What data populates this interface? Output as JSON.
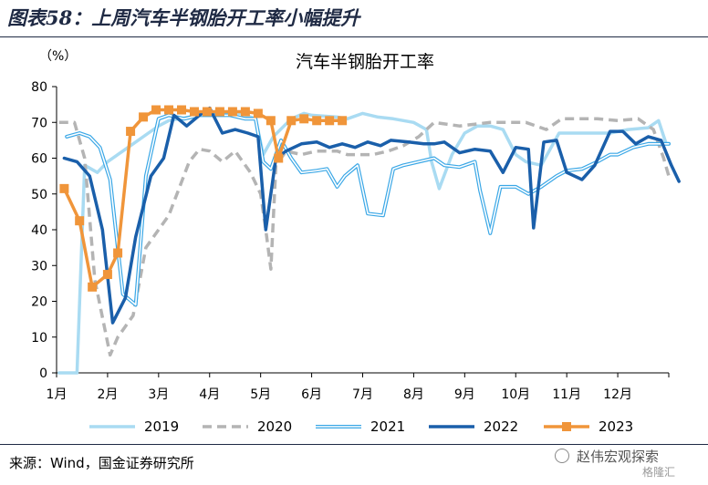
{
  "figure": {
    "title": "图表58：上周汽车半钢胎开工率小幅提升",
    "source": "来源：Wind，国金证券研究所",
    "watermark": "赵伟宏观探索",
    "badge": "格隆汇"
  },
  "chart_data": {
    "type": "line",
    "title": "汽车半钢胎开工率",
    "unit_label": "（%）",
    "xlabel": "",
    "ylabel": "",
    "ylim": [
      0,
      80
    ],
    "yticks": [
      0,
      10,
      20,
      30,
      40,
      50,
      60,
      70,
      80
    ],
    "xlim": [
      1,
      13
    ],
    "xticks": [
      1,
      2,
      3,
      4,
      5,
      6,
      7,
      8,
      9,
      10,
      11,
      12
    ],
    "xtick_labels": [
      "1月",
      "2月",
      "3月",
      "4月",
      "5月",
      "6月",
      "7月",
      "8月",
      "9月",
      "10月",
      "11月",
      "12月"
    ],
    "grid": false,
    "legend_position": "bottom",
    "series": [
      {
        "name": "2019",
        "color": "#a9dbf2",
        "style": "solid",
        "points": [
          [
            1.05,
            0
          ],
          [
            1.4,
            0
          ],
          [
            1.55,
            58
          ],
          [
            1.8,
            56
          ],
          [
            2.0,
            59
          ],
          [
            2.2,
            61
          ],
          [
            2.5,
            64
          ],
          [
            2.8,
            67
          ],
          [
            3.0,
            69
          ],
          [
            3.2,
            70.5
          ],
          [
            3.6,
            71.5
          ],
          [
            4.0,
            72.5
          ],
          [
            4.3,
            72.5
          ],
          [
            4.6,
            72.5
          ],
          [
            4.9,
            71
          ],
          [
            5.05,
            61
          ],
          [
            5.25,
            66
          ],
          [
            5.6,
            71
          ],
          [
            5.85,
            72.5
          ],
          [
            6.0,
            72
          ],
          [
            6.5,
            71.5
          ],
          [
            6.7,
            71
          ],
          [
            7.0,
            72.5
          ],
          [
            7.3,
            71.5
          ],
          [
            7.6,
            71
          ],
          [
            8.0,
            70
          ],
          [
            8.25,
            68
          ],
          [
            8.35,
            59
          ],
          [
            8.5,
            51.5
          ],
          [
            8.75,
            61
          ],
          [
            9.0,
            67
          ],
          [
            9.25,
            69
          ],
          [
            9.5,
            69
          ],
          [
            9.75,
            68
          ],
          [
            10.0,
            61
          ],
          [
            10.2,
            59
          ],
          [
            10.5,
            58
          ],
          [
            10.85,
            67
          ],
          [
            11.0,
            67
          ],
          [
            11.3,
            67
          ],
          [
            11.6,
            67
          ],
          [
            11.85,
            67
          ],
          [
            12.2,
            68
          ],
          [
            12.6,
            68.5
          ],
          [
            12.8,
            70.5
          ],
          [
            12.95,
            64
          ],
          [
            13.0,
            64
          ]
        ]
      },
      {
        "name": "2020",
        "color": "#b4b4b4",
        "style": "dashed",
        "points": [
          [
            1.05,
            70
          ],
          [
            1.35,
            70
          ],
          [
            1.55,
            60
          ],
          [
            1.75,
            26
          ],
          [
            2.05,
            5
          ],
          [
            2.2,
            10
          ],
          [
            2.5,
            16
          ],
          [
            2.75,
            35
          ],
          [
            3.0,
            40
          ],
          [
            3.2,
            44
          ],
          [
            3.6,
            59
          ],
          [
            3.8,
            62.5
          ],
          [
            4.0,
            62
          ],
          [
            4.25,
            59
          ],
          [
            4.5,
            62
          ],
          [
            4.8,
            56
          ],
          [
            5.0,
            50
          ],
          [
            5.1,
            40
          ],
          [
            5.2,
            29
          ],
          [
            5.3,
            58
          ],
          [
            5.5,
            62
          ],
          [
            5.8,
            61
          ],
          [
            6.1,
            62
          ],
          [
            6.5,
            62
          ],
          [
            6.7,
            61
          ],
          [
            7.2,
            61
          ],
          [
            7.5,
            62
          ],
          [
            7.8,
            63.5
          ],
          [
            8.1,
            66
          ],
          [
            8.4,
            70
          ],
          [
            8.9,
            69
          ],
          [
            9.2,
            69.5
          ],
          [
            9.5,
            70
          ],
          [
            9.8,
            70
          ],
          [
            10.2,
            70
          ],
          [
            10.6,
            68
          ],
          [
            10.9,
            71
          ],
          [
            11.3,
            71
          ],
          [
            11.6,
            71
          ],
          [
            12.0,
            70.5
          ],
          [
            12.4,
            71
          ],
          [
            12.7,
            68
          ],
          [
            12.9,
            60
          ],
          [
            13.0,
            55
          ]
        ]
      },
      {
        "name": "2021",
        "color": "#3aa7e6",
        "style": "double",
        "points": [
          [
            1.2,
            66
          ],
          [
            1.45,
            67
          ],
          [
            1.65,
            66
          ],
          [
            1.85,
            63
          ],
          [
            2.05,
            54
          ],
          [
            2.3,
            22
          ],
          [
            2.55,
            19
          ],
          [
            2.75,
            55
          ],
          [
            3.0,
            71
          ],
          [
            3.2,
            72
          ],
          [
            3.5,
            71
          ],
          [
            3.8,
            72
          ],
          [
            4.1,
            72
          ],
          [
            4.4,
            72
          ],
          [
            4.7,
            71
          ],
          [
            4.9,
            71
          ],
          [
            5.05,
            59
          ],
          [
            5.2,
            57
          ],
          [
            5.4,
            65
          ],
          [
            5.6,
            60
          ],
          [
            5.8,
            56
          ],
          [
            6.1,
            56.5
          ],
          [
            6.3,
            57
          ],
          [
            6.5,
            52
          ],
          [
            6.65,
            55
          ],
          [
            6.9,
            58
          ],
          [
            7.1,
            44.5
          ],
          [
            7.4,
            44
          ],
          [
            7.6,
            57
          ],
          [
            7.8,
            58
          ],
          [
            8.1,
            59
          ],
          [
            8.4,
            60
          ],
          [
            8.6,
            58
          ],
          [
            8.9,
            57.5
          ],
          [
            9.2,
            59
          ],
          [
            9.3,
            51
          ],
          [
            9.5,
            39
          ],
          [
            9.7,
            52
          ],
          [
            10.0,
            52
          ],
          [
            10.25,
            50
          ],
          [
            10.5,
            52
          ],
          [
            10.8,
            55
          ],
          [
            11.0,
            56.5
          ],
          [
            11.3,
            57
          ],
          [
            11.6,
            59
          ],
          [
            11.85,
            61
          ],
          [
            12.0,
            61
          ],
          [
            12.3,
            63
          ],
          [
            12.6,
            64
          ],
          [
            12.95,
            64
          ],
          [
            13.0,
            64
          ]
        ]
      },
      {
        "name": "2022",
        "color": "#1a5faa",
        "style": "solid-thick",
        "points": [
          [
            1.15,
            60
          ],
          [
            1.4,
            59
          ],
          [
            1.65,
            55
          ],
          [
            1.9,
            40
          ],
          [
            2.1,
            14
          ],
          [
            2.35,
            21
          ],
          [
            2.55,
            38
          ],
          [
            2.85,
            55
          ],
          [
            3.1,
            60
          ],
          [
            3.3,
            72
          ],
          [
            3.55,
            69
          ],
          [
            3.8,
            72
          ],
          [
            4.0,
            74
          ],
          [
            4.25,
            67
          ],
          [
            4.5,
            68
          ],
          [
            4.75,
            67
          ],
          [
            4.95,
            66
          ],
          [
            5.1,
            40
          ],
          [
            5.3,
            60
          ],
          [
            5.5,
            62
          ],
          [
            5.8,
            64
          ],
          [
            6.1,
            64.5
          ],
          [
            6.35,
            63
          ],
          [
            6.6,
            64
          ],
          [
            6.85,
            63
          ],
          [
            7.1,
            64.5
          ],
          [
            7.35,
            63.5
          ],
          [
            7.55,
            65
          ],
          [
            7.9,
            64.5
          ],
          [
            8.2,
            64
          ],
          [
            8.4,
            64
          ],
          [
            8.6,
            64.5
          ],
          [
            8.9,
            61.5
          ],
          [
            9.2,
            62.5
          ],
          [
            9.5,
            62
          ],
          [
            9.75,
            56
          ],
          [
            10.0,
            63
          ],
          [
            10.25,
            62.5
          ],
          [
            10.35,
            40.5
          ],
          [
            10.55,
            64.5
          ],
          [
            10.8,
            65
          ],
          [
            11.0,
            56
          ],
          [
            11.3,
            54
          ],
          [
            11.55,
            58
          ],
          [
            11.85,
            67.5
          ],
          [
            12.1,
            67.5
          ],
          [
            12.35,
            64
          ],
          [
            12.6,
            66
          ],
          [
            12.85,
            65
          ],
          [
            13.05,
            58
          ],
          [
            13.2,
            53.5
          ]
        ]
      },
      {
        "name": "2023",
        "color": "#f0953a",
        "style": "marker",
        "points": [
          [
            1.15,
            51.5
          ],
          [
            1.45,
            42.5
          ],
          [
            1.7,
            24
          ],
          [
            2.0,
            27.5
          ],
          [
            2.2,
            33.5
          ],
          [
            2.45,
            67.5
          ],
          [
            2.7,
            71.5
          ],
          [
            2.95,
            73.5
          ],
          [
            3.2,
            73.5
          ],
          [
            3.45,
            73.5
          ],
          [
            3.7,
            73
          ],
          [
            3.95,
            73
          ],
          [
            4.2,
            73
          ],
          [
            4.45,
            73
          ],
          [
            4.7,
            73
          ],
          [
            4.95,
            72.5
          ],
          [
            5.2,
            70.5
          ],
          [
            5.35,
            60
          ],
          [
            5.6,
            70.5
          ],
          [
            5.85,
            71
          ],
          [
            6.1,
            70.5
          ],
          [
            6.35,
            70.5
          ],
          [
            6.6,
            70.5
          ]
        ]
      }
    ]
  }
}
